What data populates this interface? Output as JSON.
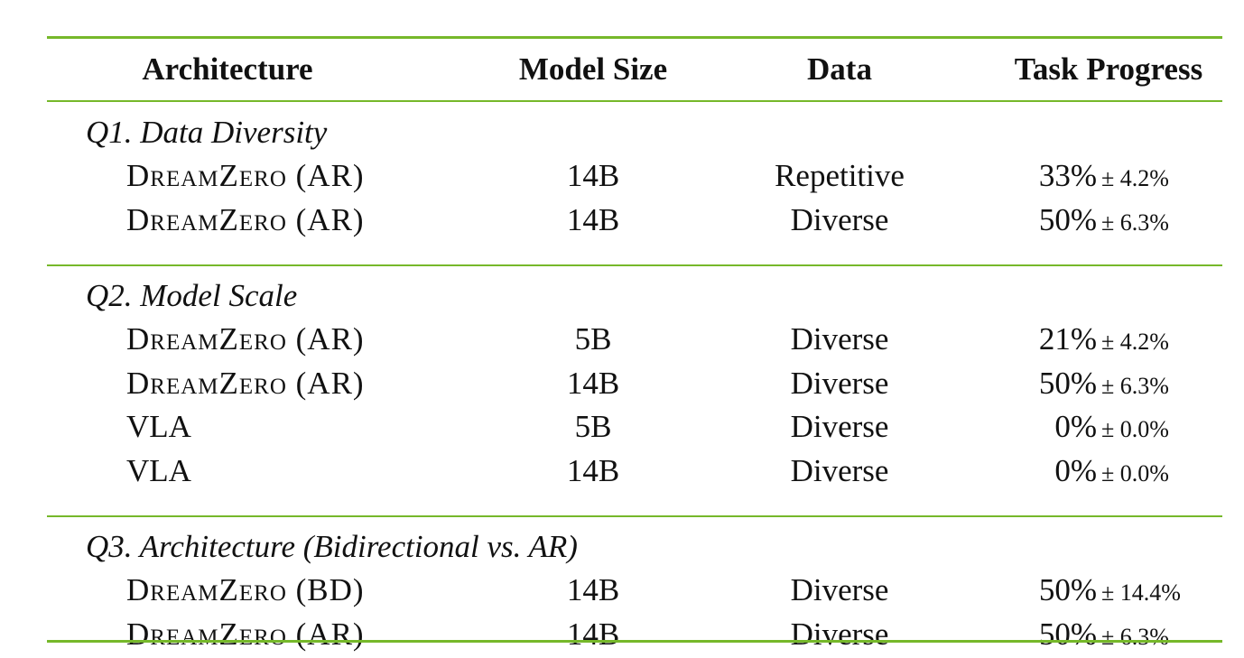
{
  "header": [
    "Architecture",
    "Model Size",
    "Data",
    "Task Progress"
  ],
  "sections": [
    {
      "title": "Q1. Data Diversity",
      "rows": [
        [
          "DreamZero (AR)",
          "14B",
          "Repetitive",
          "33%",
          "± 4.2%"
        ],
        [
          "DreamZero (AR)",
          "14B",
          "Diverse",
          "50%",
          "± 6.3%"
        ]
      ]
    },
    {
      "title": "Q2. Model Scale",
      "rows": [
        [
          "DreamZero (AR)",
          "5B",
          "Diverse",
          "21%",
          "± 4.2%"
        ],
        [
          "DreamZero (AR)",
          "14B",
          "Diverse",
          "50%",
          "± 6.3%"
        ],
        [
          "VLA",
          "5B",
          "Diverse",
          "0%",
          "± 0.0%"
        ],
        [
          "VLA",
          "14B",
          "Diverse",
          "0%",
          "± 0.0%"
        ]
      ]
    },
    {
      "title": "Q3. Architecture (Bidirectional vs. AR)",
      "rows": [
        [
          "DreamZero (BD)",
          "14B",
          "Diverse",
          "50%",
          "± 14.4%"
        ],
        [
          "DreamZero (AR)",
          "14B",
          "Diverse",
          "50%",
          "± 6.3%"
        ]
      ]
    }
  ]
}
